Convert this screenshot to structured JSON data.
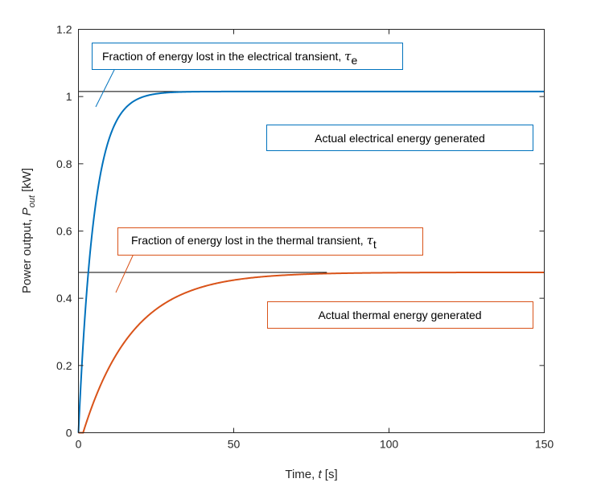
{
  "chart_data": {
    "type": "line",
    "xlabel_prefix": "Time, ",
    "xlabel_var": "t",
    "xlabel_unit": " [s]",
    "ylabel_prefix": "Power output, ",
    "ylabel_var": "P",
    "ylabel_sub": "out",
    "ylabel_unit": " [kW]",
    "xlim": [
      0,
      150
    ],
    "ylim": [
      0,
      1.2
    ],
    "xticks": [
      0,
      50,
      100,
      150
    ],
    "yticks": [
      0,
      0.2,
      0.4,
      0.6,
      0.8,
      1,
      1.2
    ],
    "xtick_labels": [
      "0",
      "50",
      "100",
      "150"
    ],
    "ytick_labels": [
      "0",
      "0.2",
      "0.4",
      "0.6",
      "0.8",
      "1",
      "1.2"
    ],
    "grid": false,
    "series": [
      {
        "color": "#0072BD",
        "model": "first-order step response",
        "steady_state": 1.015,
        "time_constant": 5,
        "reference_line": {
          "y": 1.015,
          "x_end": 43
        }
      },
      {
        "color": "#D95319",
        "model": "first-order step response with delay",
        "steady_state": 0.477,
        "time_constant": 16,
        "delay": 1.5,
        "reference_line": {
          "y": 0.477,
          "x_end": 80
        }
      }
    ],
    "annotations": [
      {
        "text": "Fraction of energy lost in the electrical transient, ",
        "symbol": "τ",
        "subscript": "e",
        "box_color": "#0072BD"
      },
      {
        "text": "Actual electrical energy generated",
        "box_color": "#0072BD"
      },
      {
        "text": "Fraction of energy lost in the thermal transient, ",
        "symbol": "τ",
        "subscript": "t",
        "box_color": "#D95319"
      },
      {
        "text": "Actual thermal energy generated",
        "box_color": "#D95319"
      }
    ]
  }
}
